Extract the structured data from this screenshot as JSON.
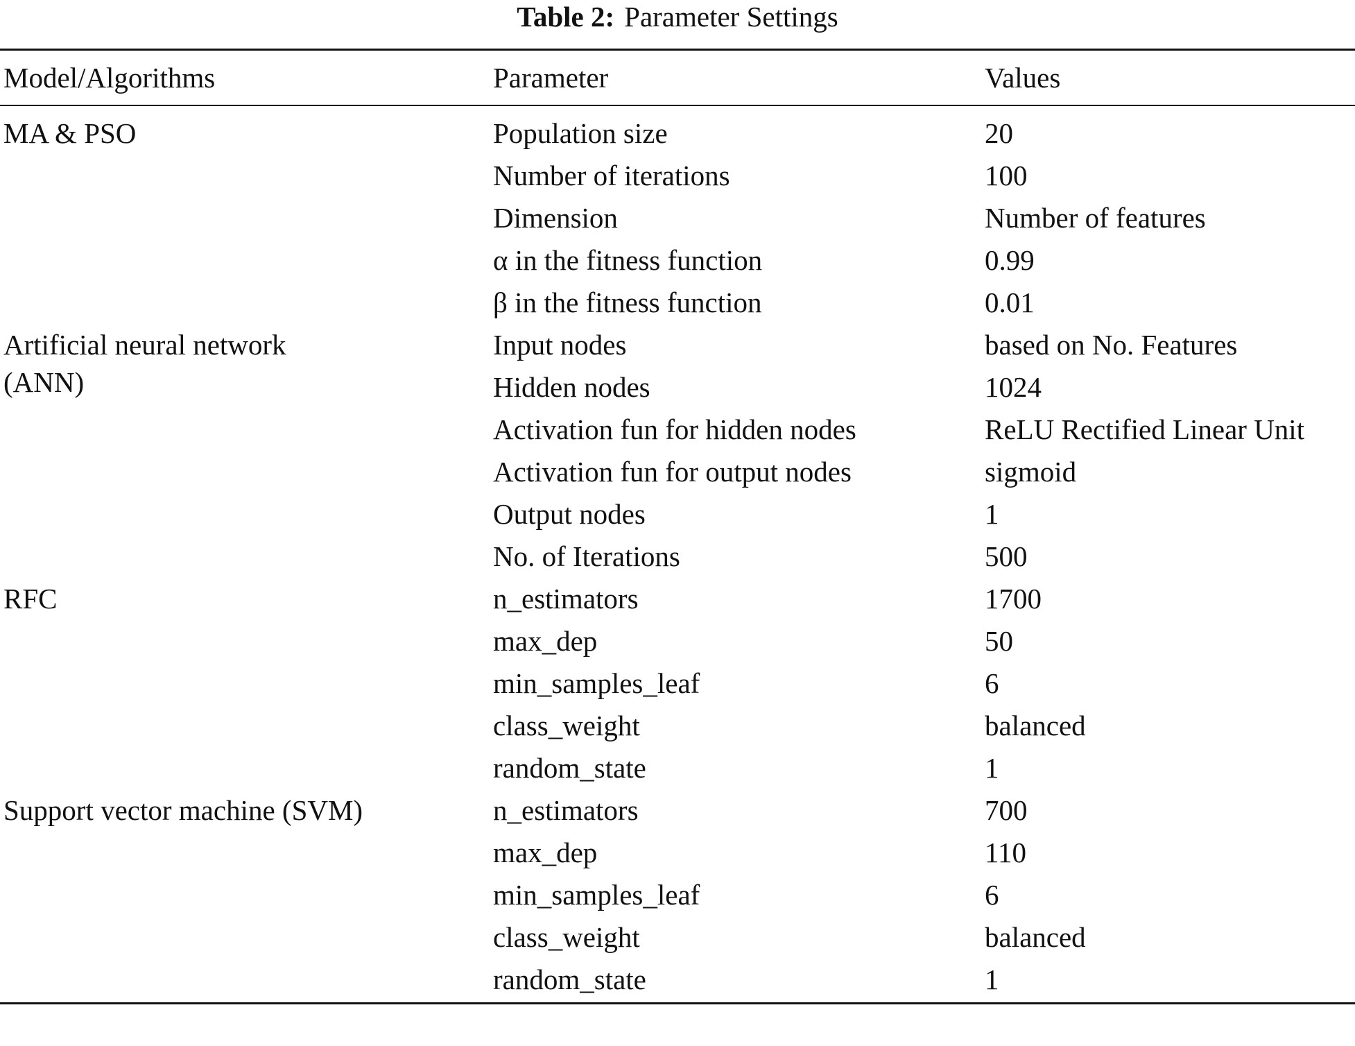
{
  "table": {
    "caption": {
      "label": "Table 2:",
      "text": "Parameter Settings"
    },
    "header": [
      "Model/Algorithms",
      "Parameter",
      "Values"
    ],
    "groups": [
      {
        "model": "MA & PSO",
        "rows": [
          [
            "Population size",
            "20"
          ],
          [
            "Number of iterations",
            "100"
          ],
          [
            "Dimension",
            "Number of features"
          ],
          [
            "α in the fitness function",
            "0.99"
          ],
          [
            "β in the fitness function",
            "0.01"
          ]
        ]
      },
      {
        "model": "Artificial neural network (ANN)",
        "rows": [
          [
            "Input nodes",
            "based on No. Features"
          ],
          [
            "Hidden nodes",
            "1024"
          ],
          [
            "Activation fun for hidden nodes",
            "ReLU Rectified Linear Unit"
          ],
          [
            "Activation fun for output nodes",
            "sigmoid"
          ],
          [
            "Output nodes",
            "1"
          ],
          [
            "No. of Iterations",
            "500"
          ]
        ]
      },
      {
        "model": "RFC",
        "rows": [
          [
            "n_estimators",
            "1700"
          ],
          [
            "max_dep",
            "50"
          ],
          [
            "min_samples_leaf",
            "6"
          ],
          [
            "class_weight",
            "balanced"
          ],
          [
            "random_state",
            "1"
          ]
        ]
      },
      {
        "model": "Support vector machine (SVM)",
        "rows": [
          [
            "n_estimators",
            "700"
          ],
          [
            "max_dep",
            "110"
          ],
          [
            "min_samples_leaf",
            "6"
          ],
          [
            "class_weight",
            "balanced"
          ],
          [
            "random_state",
            "1"
          ]
        ]
      }
    ]
  }
}
